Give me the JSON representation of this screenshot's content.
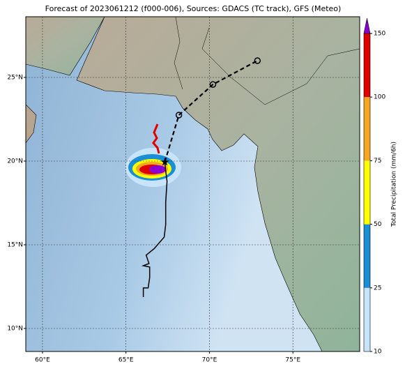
{
  "chart_data": {
    "type": "map",
    "title": "Forecast of 2023061212 (f000-006), Sources: GDACS (TC track), GFS (Meteo)",
    "xlim": [
      59,
      79
    ],
    "ylim": [
      8.625,
      28.625
    ],
    "xticks": [
      {
        "value": 60,
        "label": "60°E"
      },
      {
        "value": 65,
        "label": "65°E"
      },
      {
        "value": 70,
        "label": "70°E"
      },
      {
        "value": 75,
        "label": "75°E"
      }
    ],
    "yticks": [
      {
        "value": 10,
        "label": "10°N"
      },
      {
        "value": 15,
        "label": "15°N"
      },
      {
        "value": 20,
        "label": "20°N"
      },
      {
        "value": 25,
        "label": "25°N"
      }
    ],
    "grid": true,
    "colorbar": {
      "label": "Total Precipitation (mm/6h)",
      "ticks": [
        10,
        25,
        50,
        75,
        100,
        150
      ],
      "colors": [
        "#c8e4fb",
        "#1a8fd6",
        "#ffff00",
        "#f5a623",
        "#e00000"
      ],
      "extend_color": "#8a00d4"
    },
    "observed_track": {
      "color": "#000000",
      "lon": [
        66.04,
        66.04,
        66.33,
        66.42,
        66.42,
        66.04,
        66.38,
        66.21,
        66.71,
        67.29,
        67.38,
        67.38,
        67.46,
        67.38,
        67.33
      ],
      "lat": [
        11.875,
        12.42,
        12.42,
        13.04,
        13.67,
        13.75,
        13.88,
        14.38,
        14.79,
        15.46,
        16.21,
        17.54,
        18.79,
        19.42,
        19.96
      ]
    },
    "forecast_track": {
      "color": "#000000",
      "lon": [
        67.33,
        68.17,
        70.21,
        72.875
      ],
      "lat": [
        19.96,
        22.75,
        24.58,
        26.0
      ]
    }
  }
}
